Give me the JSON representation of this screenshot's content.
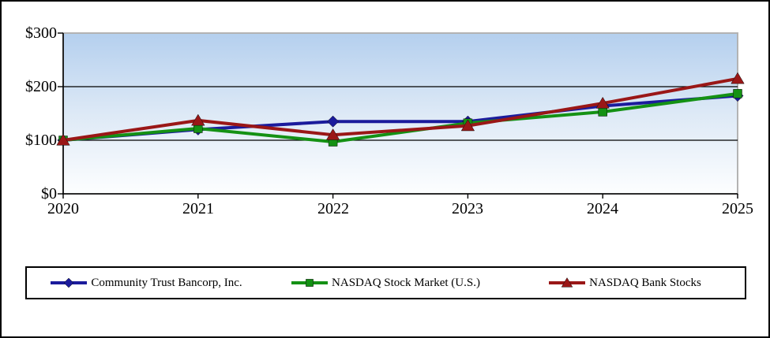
{
  "chart_data": {
    "type": "line",
    "title": "",
    "categories": [
      "2020",
      "2021",
      "2022",
      "2023",
      "2024",
      "2025"
    ],
    "series": [
      {
        "name": "Community Trust Bancorp, Inc.",
        "marker": "diamond",
        "color": "#1b1b9c",
        "values": [
          100,
          120,
          135,
          135,
          164,
          183
        ]
      },
      {
        "name": "NASDAQ Stock Market (U.S.)",
        "marker": "square",
        "color": "#149114",
        "values": [
          100,
          122,
          97,
          132,
          153,
          187
        ]
      },
      {
        "name": "NASDAQ Bank Stocks",
        "marker": "triangle",
        "color": "#9a1717",
        "values": [
          100,
          137,
          110,
          127,
          169,
          215
        ]
      }
    ],
    "y_ticks": [
      {
        "value": 0,
        "label": "$0"
      },
      {
        "value": 100,
        "label": "$100"
      },
      {
        "value": 200,
        "label": "$200"
      },
      {
        "value": 300,
        "label": "$300"
      }
    ],
    "ylim": [
      0,
      300
    ],
    "grid": true,
    "legend_position": "bottom",
    "colors": {
      "plot_gradient_top": "#b4cfee",
      "plot_gradient_mid": "#dde9f6",
      "plot_gradient_bottom": "#fdfeff",
      "gridline": "#000000",
      "axis": "#000000",
      "plot_border": "#b3b3b3",
      "legend_border": "#000000",
      "canvas_border": "#000000"
    }
  }
}
